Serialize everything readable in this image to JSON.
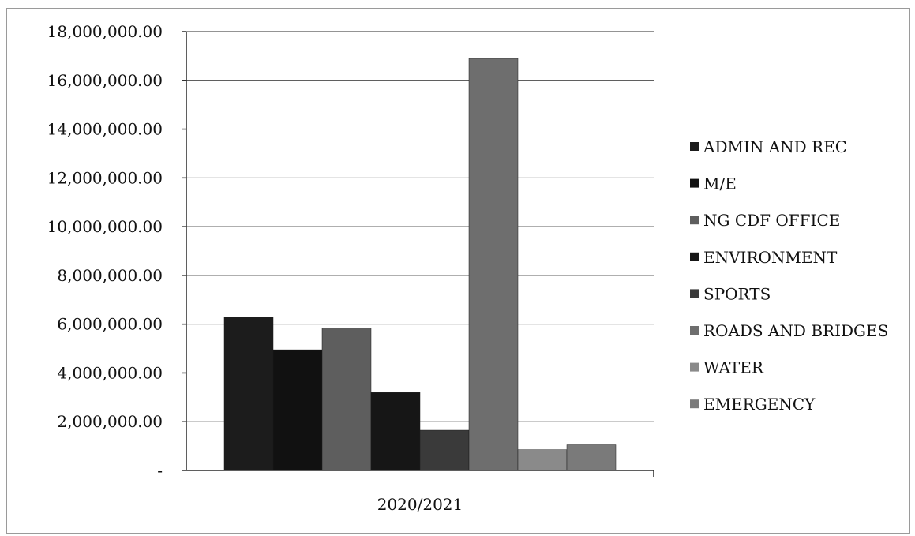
{
  "chart_data": {
    "type": "bar",
    "title": "",
    "xlabel": "",
    "ylabel": "",
    "categories": [
      "2020/2021"
    ],
    "ylim": [
      0,
      18000000
    ],
    "y_ticks": [
      0,
      2000000,
      4000000,
      6000000,
      8000000,
      10000000,
      12000000,
      14000000,
      16000000,
      18000000
    ],
    "y_tick_labels": [
      "-",
      "2,000,000.00",
      "4,000,000.00",
      "6,000,000.00",
      "8,000,000.00",
      "10,000,000.00",
      "12,000,000.00",
      "14,000,000.00",
      "16,000,000.00",
      "18,000,000.00"
    ],
    "grid": true,
    "legend_position": "right",
    "series": [
      {
        "name": "ADMIN AND REC",
        "values": [
          6300000
        ],
        "color": "#1c1c1c"
      },
      {
        "name": "M/E",
        "values": [
          4950000
        ],
        "color": "#111111"
      },
      {
        "name": "NG CDF OFFICE",
        "values": [
          5850000
        ],
        "color": "#5e5e5e"
      },
      {
        "name": "ENVIRONMENT",
        "values": [
          3200000
        ],
        "color": "#161616"
      },
      {
        "name": "SPORTS",
        "values": [
          1650000
        ],
        "color": "#3a3a3a"
      },
      {
        "name": "ROADS AND BRIDGES",
        "values": [
          16900000
        ],
        "color": "#6e6e6e"
      },
      {
        "name": "WATER",
        "values": [
          850000
        ],
        "color": "#8a8a8a"
      },
      {
        "name": "EMERGENCY",
        "values": [
          1050000
        ],
        "color": "#7a7a7a"
      }
    ]
  }
}
